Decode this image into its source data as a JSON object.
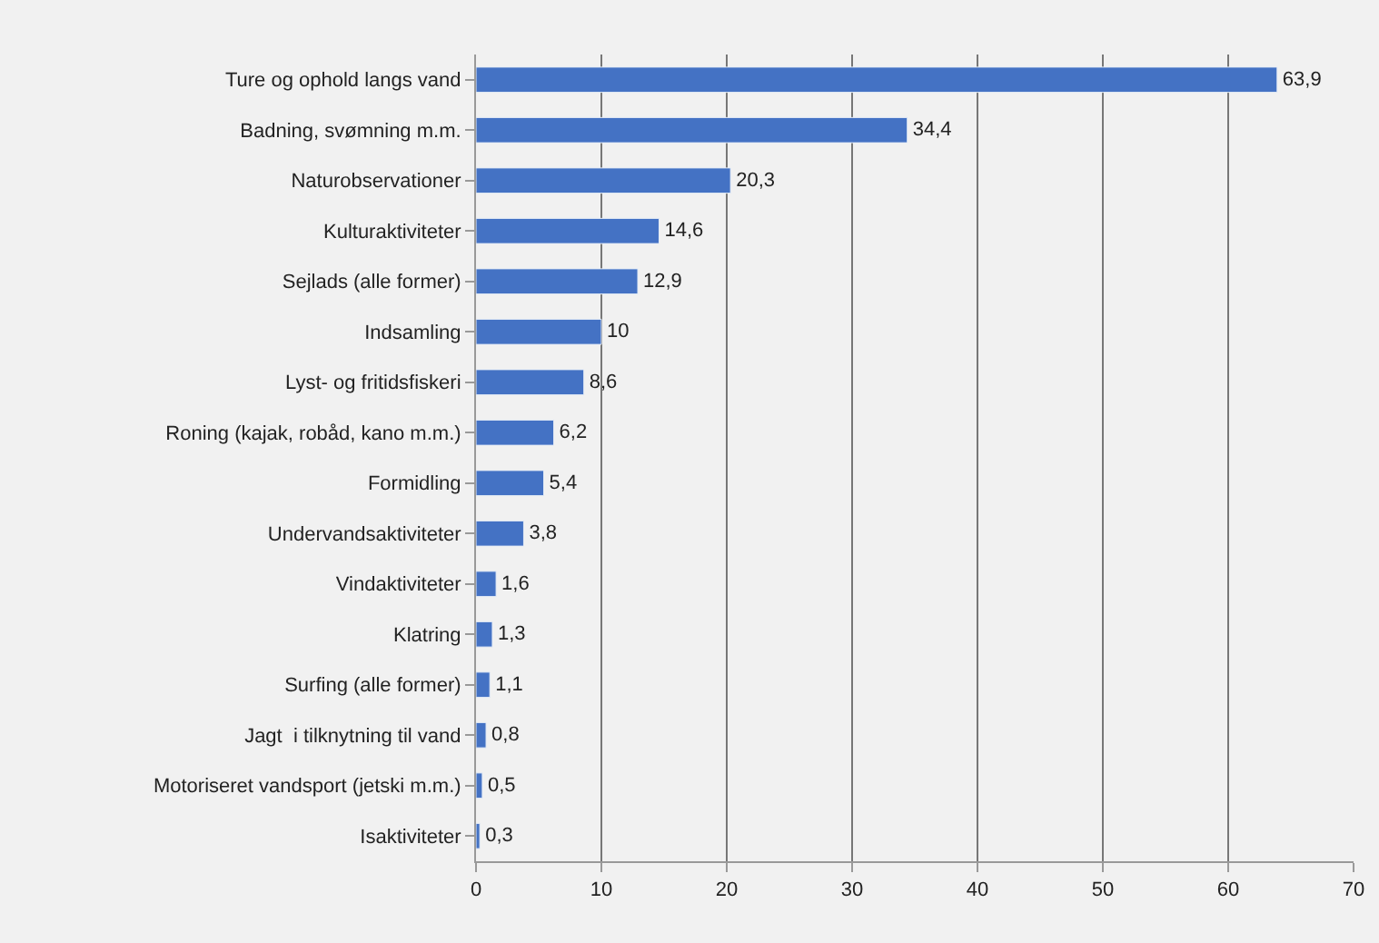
{
  "chart_data": {
    "type": "bar",
    "orientation": "horizontal",
    "categories": [
      "Ture og ophold langs vand",
      "Badning, svømning m.m.",
      "Naturobservationer",
      "Kulturaktiviteter",
      "Sejlads (alle former)",
      "Indsamling",
      "Lyst- og fritidsfiskeri",
      "Roning (kajak, robåd, kano m.m.)",
      "Formidling",
      "Undervandsaktiviteter",
      "Vindaktiviteter",
      "Klatring",
      "Surfing (alle former)",
      "Jagt  i tilknytning til vand",
      "Motoriseret vandsport (jetski m.m.)",
      "Isaktiviteter"
    ],
    "values": [
      63.9,
      34.4,
      20.3,
      14.6,
      12.9,
      10,
      8.6,
      6.2,
      5.4,
      3.8,
      1.6,
      1.3,
      1.1,
      0.8,
      0.5,
      0.3
    ],
    "value_labels": [
      "63,9",
      "34,4",
      "20,3",
      "14,6",
      "12,9",
      "10",
      "8,6",
      "6,2",
      "5,4",
      "3,8",
      "1,6",
      "1,3",
      "1,1",
      "0,8",
      "0,5",
      "0,3"
    ],
    "color": "#4472c4",
    "xlim": [
      0,
      70
    ],
    "xticks": [
      0,
      10,
      20,
      30,
      40,
      50,
      60,
      70
    ],
    "grid": "x",
    "legend": false
  }
}
